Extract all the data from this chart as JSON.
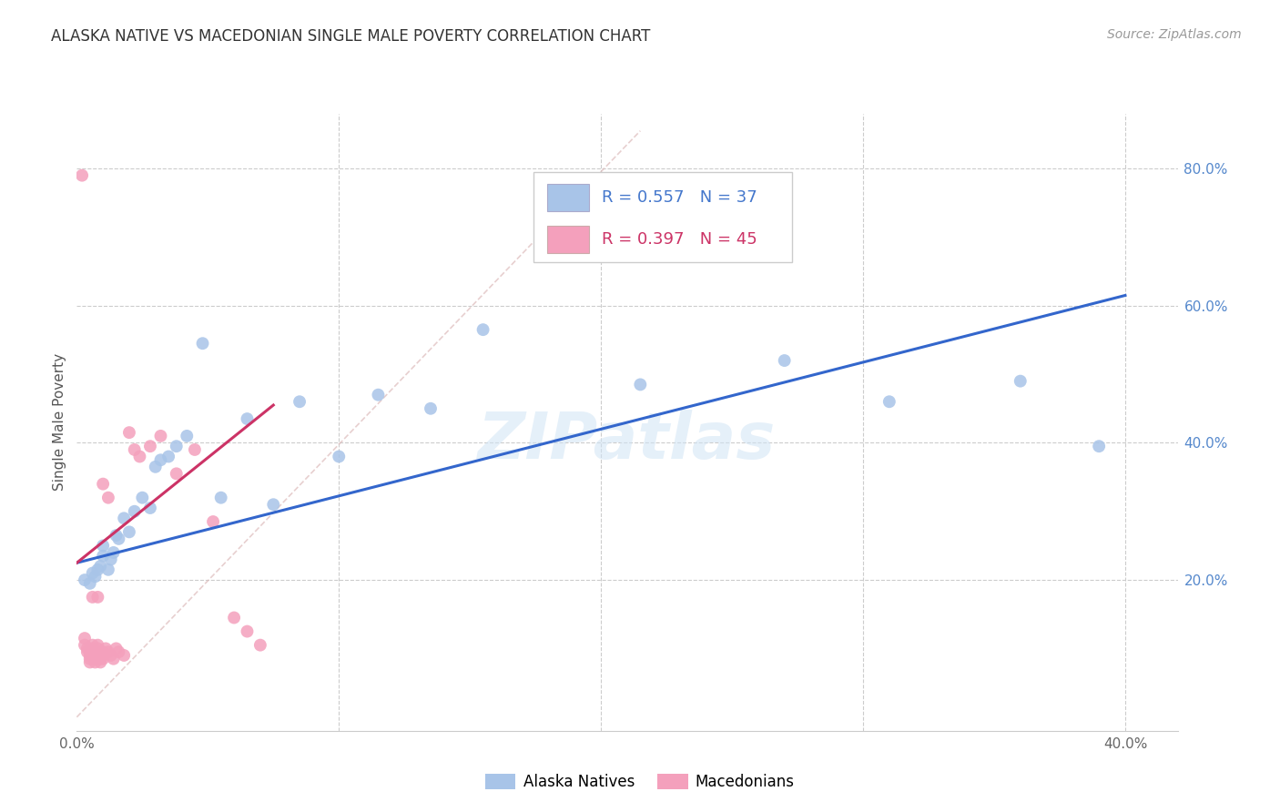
{
  "title": "ALASKA NATIVE VS MACEDONIAN SINGLE MALE POVERTY CORRELATION CHART",
  "source": "Source: ZipAtlas.com",
  "ylabel": "Single Male Poverty",
  "xlim": [
    0.0,
    0.42
  ],
  "ylim": [
    -0.02,
    0.88
  ],
  "alaska_R": "0.557",
  "alaska_N": "37",
  "macedonian_R": "0.397",
  "macedonian_N": "45",
  "alaska_color": "#a8c4e8",
  "macedonian_color": "#f4a0bc",
  "alaska_line_color": "#3366cc",
  "macedonian_line_color": "#cc3366",
  "diag_color": "#ddbbbb",
  "watermark": "ZIPatlas",
  "alaska_line": [
    [
      0.0,
      0.225
    ],
    [
      0.4,
      0.615
    ]
  ],
  "macedonian_line": [
    [
      0.0,
      0.225
    ],
    [
      0.075,
      0.455
    ]
  ],
  "diag_line": [
    [
      0.0,
      0.0
    ],
    [
      0.215,
      0.855
    ]
  ],
  "alaska_points_x": [
    0.003,
    0.005,
    0.006,
    0.007,
    0.008,
    0.009,
    0.01,
    0.01,
    0.012,
    0.013,
    0.014,
    0.015,
    0.016,
    0.018,
    0.02,
    0.022,
    0.025,
    0.028,
    0.03,
    0.032,
    0.035,
    0.038,
    0.042,
    0.048,
    0.055,
    0.065,
    0.075,
    0.085,
    0.1,
    0.115,
    0.135,
    0.155,
    0.215,
    0.27,
    0.31,
    0.36,
    0.39
  ],
  "alaska_points_y": [
    0.2,
    0.195,
    0.21,
    0.205,
    0.215,
    0.22,
    0.235,
    0.25,
    0.215,
    0.23,
    0.24,
    0.265,
    0.26,
    0.29,
    0.27,
    0.3,
    0.32,
    0.305,
    0.365,
    0.375,
    0.38,
    0.395,
    0.41,
    0.545,
    0.32,
    0.435,
    0.31,
    0.46,
    0.38,
    0.47,
    0.45,
    0.565,
    0.485,
    0.52,
    0.46,
    0.49,
    0.395
  ],
  "macedonian_points_x": [
    0.002,
    0.003,
    0.003,
    0.004,
    0.004,
    0.005,
    0.005,
    0.005,
    0.006,
    0.006,
    0.006,
    0.007,
    0.007,
    0.007,
    0.008,
    0.008,
    0.008,
    0.009,
    0.009,
    0.01,
    0.01,
    0.01,
    0.011,
    0.012,
    0.013,
    0.014,
    0.015,
    0.016,
    0.018,
    0.02,
    0.022,
    0.024,
    0.028,
    0.032,
    0.038,
    0.045,
    0.052,
    0.06,
    0.065,
    0.07,
    0.012,
    0.01,
    0.008,
    0.006,
    0.005
  ],
  "macedonian_points_y": [
    0.79,
    0.115,
    0.105,
    0.1,
    0.095,
    0.09,
    0.085,
    0.08,
    0.105,
    0.1,
    0.095,
    0.09,
    0.085,
    0.08,
    0.105,
    0.1,
    0.09,
    0.085,
    0.08,
    0.095,
    0.09,
    0.085,
    0.1,
    0.095,
    0.09,
    0.085,
    0.1,
    0.095,
    0.09,
    0.415,
    0.39,
    0.38,
    0.395,
    0.41,
    0.355,
    0.39,
    0.285,
    0.145,
    0.125,
    0.105,
    0.32,
    0.34,
    0.175,
    0.175,
    0.1
  ]
}
